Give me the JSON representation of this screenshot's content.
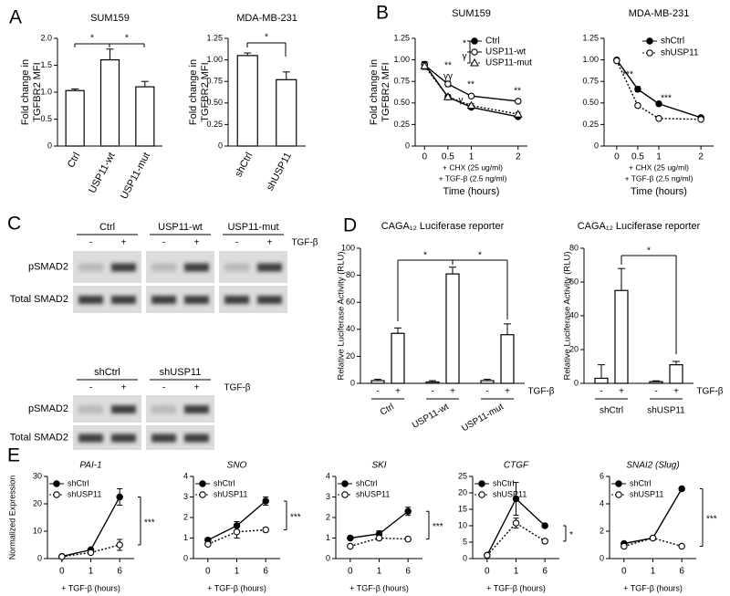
{
  "panel_labels": [
    "A",
    "B",
    "C",
    "D",
    "E"
  ],
  "blots": [
    {
      "groups": [
        "Ctrl",
        "USP11-wt",
        "USP11-mut"
      ],
      "lanes": [
        "-",
        "+"
      ],
      "treatment": "TGF-β",
      "rows": [
        "pSMAD2",
        "Total SMAD2"
      ]
    },
    {
      "groups": [
        "shCtrl",
        "shUSP11"
      ],
      "lanes": [
        "-",
        "+"
      ],
      "treatment": "TGF-β",
      "rows": [
        "pSMAD2",
        "Total SMAD2"
      ]
    }
  ],
  "chart_data": [
    {
      "type": "bar",
      "title": "SUM159",
      "ylabel": [
        "Fold change in",
        "TGFBR2 MFI"
      ],
      "categories": [
        "Ctrl",
        "USP11-wt",
        "USP11-mut"
      ],
      "values": [
        1.03,
        1.6,
        1.1
      ],
      "errors": [
        0.03,
        0.2,
        0.1
      ],
      "color": "#ffffff",
      "ylim": [
        0,
        2
      ],
      "yticks": [
        0,
        0.5,
        {
          "value": 1,
          "label": "1.0"
        },
        1.5,
        {
          "value": 2,
          "label": "2.0"
        }
      ],
      "annotations": [
        "*",
        "*"
      ]
    },
    {
      "type": "bar",
      "title": "MDA-MB-231",
      "ylabel": [
        "Fold change in",
        "TGFBR2 MFI"
      ],
      "categories": [
        "shCtrl",
        "shUSP11"
      ],
      "values": [
        1.05,
        0.77
      ],
      "errors": [
        0.03,
        0.09
      ],
      "color": "#ffffff",
      "ylim": [
        0,
        1.25
      ],
      "yticks": [
        0,
        0.25,
        {
          "value": 0.5,
          "label": "0.50"
        },
        0.75,
        {
          "value": 1,
          "label": "1.00"
        },
        1.25
      ],
      "annotations": [
        "*"
      ]
    },
    {
      "type": "line",
      "title": "SUM159",
      "ylabel": [
        "Fold change in",
        "TGFBR2 MFI"
      ],
      "xlabel": "Time (hours)",
      "x": [
        0,
        0.5,
        1,
        2
      ],
      "xlim": [
        -0.2,
        2.2
      ],
      "xticks": [
        0,
        0.5,
        1,
        2
      ],
      "ylim": [
        0,
        1.25
      ],
      "yticks": [
        0,
        0.25,
        {
          "value": 0.5,
          "label": "0.50"
        },
        0.75,
        {
          "value": 1,
          "label": "1.00"
        },
        1.25
      ],
      "series": [
        {
          "name": "Ctrl",
          "color": "#000000",
          "marker": "circle",
          "filled": true,
          "dashed": false,
          "values": [
            0.95,
            0.57,
            0.45,
            0.34
          ],
          "errors": [
            0.03,
            0.02,
            0.02,
            0.02
          ]
        },
        {
          "name": "USP11-wt",
          "color": "#000000",
          "marker": "circle",
          "filled": false,
          "dashed": false,
          "values": [
            0.94,
            0.72,
            0.58,
            0.52
          ],
          "errors": [
            0.04,
            0.03,
            0.02,
            0.02
          ]
        },
        {
          "name": "USP11-mut",
          "color": "#000000",
          "marker": "triangle",
          "filled": false,
          "dashed": true,
          "values": [
            0.93,
            0.57,
            0.47,
            0.37
          ],
          "errors": [
            0.04,
            0.02,
            0.02,
            0.02
          ]
        }
      ],
      "notes": [
        "+ CHX (25 ug/ml)",
        "+ TGF-β (2.5 ng/ml)"
      ],
      "annotations": [
        "*",
        "γ",
        "**",
        "γγ",
        "**",
        "γ",
        "**"
      ]
    },
    {
      "type": "line",
      "title": "MDA-MB-231",
      "xlabel": "Time (hours)",
      "x": [
        0,
        0.5,
        1,
        2
      ],
      "xlim": [
        -0.3,
        2.3
      ],
      "xticks": [
        0,
        0.5,
        1,
        2
      ],
      "ylim": [
        0,
        1.25
      ],
      "yticks": [
        0,
        0.25,
        {
          "value": 0.5,
          "label": "0.50"
        },
        0.75,
        {
          "value": 1,
          "label": "1.00"
        },
        1.25
      ],
      "series": [
        {
          "name": "shCtrl",
          "color": "#000000",
          "marker": "circle",
          "filled": true,
          "dashed": false,
          "values": [
            1.0,
            0.66,
            0.49,
            0.33
          ],
          "errors": [
            0.02,
            0.03,
            0.02,
            0.01
          ]
        },
        {
          "name": "shUSP11",
          "color": "#000000",
          "marker": "circle",
          "filled": false,
          "dashed": true,
          "values": [
            0.99,
            0.47,
            0.32,
            0.31
          ],
          "errors": [
            0.02,
            0.02,
            0.01,
            0.01
          ]
        }
      ],
      "notes": [
        "+ CHX (25 ug/ml)",
        "+ TGF-β (2.5 ng/ml)"
      ],
      "annotations": [
        "***",
        "***"
      ]
    },
    {
      "type": "bar",
      "title": "CAGA₁₂ Luciferase reporter",
      "ylabel": "Relative Luciferase Activity (RLU)",
      "categories": [
        "-",
        "+",
        "-",
        "+",
        "-",
        "+"
      ],
      "groups": [
        "Ctrl",
        "USP11-wt",
        "USP11-mut"
      ],
      "treatment": "TGF-β",
      "values": [
        2,
        37,
        1,
        81,
        2,
        36
      ],
      "errors": [
        1,
        4,
        1,
        5,
        1,
        8
      ],
      "color": "#ffffff",
      "ylim": [
        0,
        100
      ],
      "yticks": [
        0,
        20,
        40,
        60,
        80,
        100
      ],
      "annotations": [
        "*",
        "*"
      ]
    },
    {
      "type": "bar",
      "title": "CAGA₁₂ Luciferase reporter",
      "ylabel": "Relative Luciferase Activity (RLU)",
      "categories": [
        "-",
        "+",
        "-",
        "+"
      ],
      "groups": [
        "shCtrl",
        "shUSP11"
      ],
      "treatment": "TGF-β",
      "values": [
        3,
        55,
        1,
        11
      ],
      "errors": [
        8,
        13,
        0.5,
        2
      ],
      "color": "#ffffff",
      "ylim": [
        0,
        80
      ],
      "yticks": [
        0,
        20,
        40,
        60,
        80
      ],
      "annotations": [
        "*"
      ]
    },
    {
      "type": "line",
      "title": "PAI-1",
      "ylabel": "Normalized Expression",
      "xlabel": "+ TGF-β (hours)",
      "categories": [
        "0",
        "1",
        "6"
      ],
      "ylim": [
        0,
        30
      ],
      "yticks": [
        0,
        10,
        20,
        30
      ],
      "series": [
        {
          "name": "shCtrl",
          "color": "#000000",
          "marker": "circle",
          "filled": true,
          "dashed": false,
          "values": [
            0.8,
            3.2,
            22.5
          ],
          "errors": [
            0.2,
            0.5,
            3
          ]
        },
        {
          "name": "shUSP11",
          "color": "#000000",
          "marker": "circle",
          "filled": false,
          "dashed": true,
          "values": [
            0.7,
            2.2,
            5
          ],
          "errors": [
            0.1,
            0.3,
            2
          ]
        }
      ],
      "annotations": [
        "***"
      ]
    },
    {
      "type": "line",
      "title": "SNO",
      "xlabel": "+ TGF-β (hours)",
      "categories": [
        "0",
        "1",
        "6"
      ],
      "ylim": [
        0,
        4
      ],
      "yticks": [
        0,
        1,
        2,
        3,
        4
      ],
      "series": [
        {
          "name": "shCtrl",
          "color": "#000000",
          "marker": "circle",
          "filled": true,
          "dashed": false,
          "values": [
            0.9,
            1.6,
            2.8
          ],
          "errors": [
            0.1,
            0.2,
            0.2
          ]
        },
        {
          "name": "shUSP11",
          "color": "#000000",
          "marker": "circle",
          "filled": false,
          "dashed": true,
          "values": [
            0.7,
            1.3,
            1.4
          ],
          "errors": [
            0.05,
            0.3,
            0.1
          ]
        }
      ],
      "annotations": [
        "***"
      ]
    },
    {
      "type": "line",
      "title": "SKI",
      "xlabel": "+ TGF-β (hours)",
      "categories": [
        "0",
        "1",
        "6"
      ],
      "ylim": [
        0,
        4
      ],
      "yticks": [
        0,
        1,
        2,
        3,
        4
      ],
      "series": [
        {
          "name": "shCtrl",
          "color": "#000000",
          "marker": "circle",
          "filled": true,
          "dashed": false,
          "values": [
            1.0,
            1.2,
            2.3
          ],
          "errors": [
            0.03,
            0.15,
            0.2
          ]
        },
        {
          "name": "shUSP11",
          "color": "#000000",
          "marker": "circle",
          "filled": false,
          "dashed": true,
          "values": [
            0.6,
            1.0,
            0.95
          ],
          "errors": [
            0.03,
            0.1,
            0.1
          ]
        }
      ],
      "annotations": [
        "***"
      ]
    },
    {
      "type": "line",
      "title": "CTGF",
      "xlabel": "+ TGF-β (hours)",
      "categories": [
        "0",
        "1",
        "6"
      ],
      "ylim": [
        0,
        25
      ],
      "yticks": [
        0,
        5,
        10,
        15,
        20,
        25
      ],
      "series": [
        {
          "name": "shCtrl",
          "color": "#000000",
          "marker": "circle",
          "filled": true,
          "dashed": false,
          "values": [
            1,
            18.2,
            10
          ],
          "errors": [
            0.1,
            5,
            0.5
          ]
        },
        {
          "name": "shUSP11",
          "color": "#000000",
          "marker": "circle",
          "filled": false,
          "dashed": true,
          "values": [
            1,
            10.8,
            5.3
          ],
          "errors": [
            0.1,
            1.5,
            0.5
          ]
        }
      ],
      "annotations": [
        "*"
      ]
    },
    {
      "type": "line",
      "title": "SNAI2 (Slug)",
      "xlabel": "+ TGF-β (hours)",
      "categories": [
        "0",
        "1",
        "6"
      ],
      "ylim": [
        0,
        6
      ],
      "yticks": [
        0,
        2,
        4,
        6
      ],
      "series": [
        {
          "name": "shCtrl",
          "color": "#000000",
          "marker": "circle",
          "filled": true,
          "dashed": false,
          "values": [
            1.1,
            1.5,
            5.1
          ],
          "errors": [
            0.05,
            0.05,
            0.1
          ]
        },
        {
          "name": "shUSP11",
          "color": "#000000",
          "marker": "circle",
          "filled": false,
          "dashed": true,
          "values": [
            0.9,
            1.5,
            0.9
          ],
          "errors": [
            0.05,
            0.1,
            0.05
          ]
        }
      ],
      "annotations": [
        "***"
      ]
    }
  ]
}
